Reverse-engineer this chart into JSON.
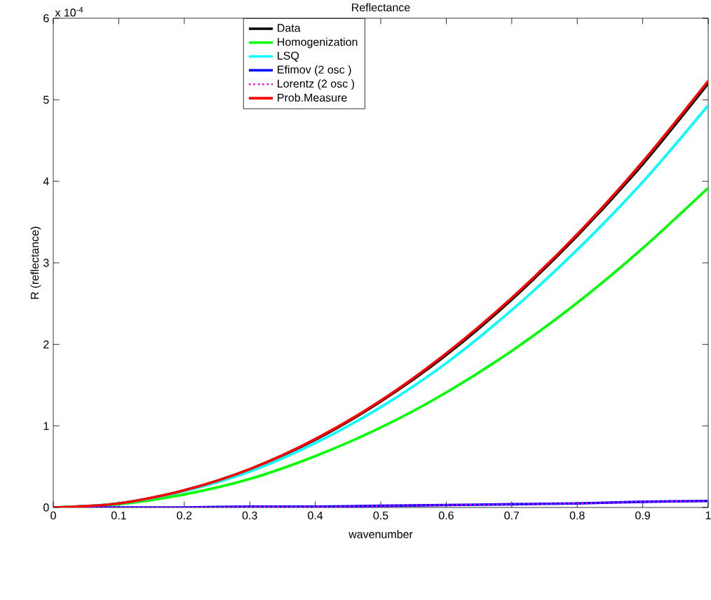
{
  "chart_data": {
    "type": "line",
    "title": "Reflectance",
    "xlabel": "wavenumber",
    "ylabel": "R (reflectance)",
    "annotations": [
      "x 10$^{-4}$"
    ],
    "x": [
      0,
      0.1,
      0.2,
      0.3,
      0.4,
      0.5,
      0.6,
      0.7,
      0.8,
      0.9,
      1
    ],
    "xlim": [
      0,
      1
    ],
    "xticks": [
      0,
      0.1,
      0.2,
      0.3,
      0.4,
      0.5,
      0.6,
      0.7,
      0.8,
      0.9,
      1
    ],
    "ylim": [
      0,
      6
    ],
    "yticks": [
      0,
      1,
      2,
      3,
      4,
      5,
      6
    ],
    "legend": "top",
    "grid": false,
    "marker": "none",
    "series": [
      {
        "name": "Data",
        "color": "#000000",
        "values": [
          0,
          0.05,
          0.21,
          0.47,
          0.83,
          1.3,
          1.87,
          2.55,
          3.33,
          4.21,
          5.2
        ]
      },
      {
        "name": "Homogenization",
        "color": "#00ff00",
        "values": [
          0,
          0.04,
          0.16,
          0.35,
          0.63,
          0.98,
          1.41,
          1.92,
          2.51,
          3.18,
          3.92
        ]
      },
      {
        "name": "LSQ",
        "color": "#00ffff",
        "values": [
          0,
          0.05,
          0.2,
          0.44,
          0.79,
          1.23,
          1.77,
          2.42,
          3.16,
          3.99,
          4.93
        ]
      },
      {
        "name": "Efimov (2 osc )",
        "color": "#0000ff",
        "values": [
          0,
          0,
          0,
          0.01,
          0.01,
          0.02,
          0.03,
          0.04,
          0.05,
          0.07,
          0.08
        ]
      },
      {
        "name": "Lorentz (2 osc )",
        "color": "#ff00ff",
        "line_style": "dotted",
        "values": [
          0,
          0,
          0,
          0.01,
          0.01,
          0.02,
          0.03,
          0.04,
          0.05,
          0.07,
          0.08
        ]
      },
      {
        "name": "Prob.Measure",
        "color": "#ff0000",
        "values": [
          0,
          0.05,
          0.21,
          0.47,
          0.84,
          1.31,
          1.89,
          2.57,
          3.35,
          4.24,
          5.23
        ]
      }
    ]
  }
}
